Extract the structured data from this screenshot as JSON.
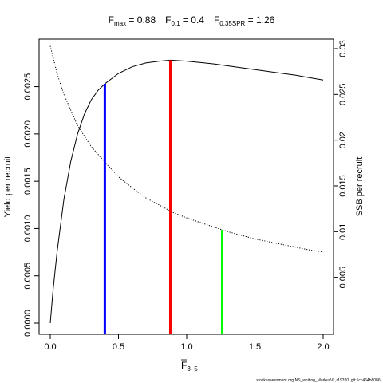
{
  "chart_data": {
    "type": "line",
    "title": {
      "fmax_label": "F",
      "fmax_sub": "max",
      "fmax_value": " = 0.88",
      "f01_label": "F",
      "f01_sub": "0.1",
      "f01_value": " = 0.4",
      "fspr_label": "F",
      "fspr_sub": "0.35SPR",
      "fspr_value": " = 1.26"
    },
    "xlabel_main": "F",
    "xlabel_sub": "3–5",
    "ylabel_left": "Yield per recruit",
    "ylabel_right": "SSB per recruit",
    "xlim": [
      0,
      2
    ],
    "ylim_left": [
      0,
      0.0028
    ],
    "ylim_right": [
      0,
      0.031
    ],
    "x_ticks": [
      {
        "value": 0.0,
        "label": "0.0"
      },
      {
        "value": 0.5,
        "label": "0.5"
      },
      {
        "value": 1.0,
        "label": "1.0"
      },
      {
        "value": 1.5,
        "label": "1.5"
      },
      {
        "value": 2.0,
        "label": "2.0"
      }
    ],
    "y_left_ticks": [
      {
        "value": 0.0,
        "label": "0.0000"
      },
      {
        "value": 0.0005,
        "label": "0.0005"
      },
      {
        "value": 0.001,
        "label": "0.0010"
      },
      {
        "value": 0.0015,
        "label": "0.0015"
      },
      {
        "value": 0.002,
        "label": "0.0020"
      },
      {
        "value": 0.0025,
        "label": "0.0025"
      }
    ],
    "y_right_ticks": [
      {
        "value": 0.005,
        "label": "0.005"
      },
      {
        "value": 0.01,
        "label": "0.01"
      },
      {
        "value": 0.015,
        "label": "0.015"
      },
      {
        "value": 0.02,
        "label": "0.02"
      },
      {
        "value": 0.025,
        "label": "0.025"
      },
      {
        "value": 0.03,
        "label": "0.03"
      }
    ],
    "series": [
      {
        "axis": "left",
        "style": "solid",
        "color": "#000000",
        "points": [
          [
            0.0,
            0.0
          ],
          [
            0.02,
            0.00034
          ],
          [
            0.05,
            0.00075
          ],
          [
            0.1,
            0.00131
          ],
          [
            0.15,
            0.00171
          ],
          [
            0.2,
            0.002
          ],
          [
            0.25,
            0.00221
          ],
          [
            0.3,
            0.00236
          ],
          [
            0.35,
            0.00246
          ],
          [
            0.4,
            0.00253
          ],
          [
            0.5,
            0.00264
          ],
          [
            0.6,
            0.00271
          ],
          [
            0.7,
            0.00275
          ],
          [
            0.8,
            0.00277
          ],
          [
            0.88,
            0.00278
          ],
          [
            1.0,
            0.00277
          ],
          [
            1.2,
            0.00274
          ],
          [
            1.4,
            0.0027
          ],
          [
            1.6,
            0.00266
          ],
          [
            1.8,
            0.00262
          ],
          [
            2.0,
            0.00257
          ]
        ]
      },
      {
        "axis": "right",
        "style": "dotted",
        "color": "#000000",
        "points": [
          [
            0.0,
            0.0303
          ],
          [
            0.05,
            0.0273
          ],
          [
            0.1,
            0.025
          ],
          [
            0.2,
            0.0216
          ],
          [
            0.3,
            0.0193
          ],
          [
            0.4,
            0.0176
          ],
          [
            0.5,
            0.016
          ],
          [
            0.6,
            0.0148
          ],
          [
            0.7,
            0.0137
          ],
          [
            0.8,
            0.0129
          ],
          [
            0.9,
            0.0121
          ],
          [
            1.0,
            0.0115
          ],
          [
            1.1,
            0.011
          ],
          [
            1.2,
            0.0105
          ],
          [
            1.3,
            0.01
          ],
          [
            1.4,
            0.0096
          ],
          [
            1.5,
            0.0092
          ],
          [
            1.6,
            0.0089
          ],
          [
            1.7,
            0.0086
          ],
          [
            1.8,
            0.0083
          ],
          [
            1.9,
            0.008
          ],
          [
            2.0,
            0.0078
          ]
        ]
      }
    ],
    "reference_lines": [
      {
        "name": "F0.1",
        "x": 0.4,
        "y_top": 0.00253,
        "axis": "left",
        "color": "#0000ff"
      },
      {
        "name": "Fmax",
        "x": 0.88,
        "y_top": 0.00278,
        "axis": "left",
        "color": "#ff0000"
      },
      {
        "name": "F0.35SPR",
        "x": 1.26,
        "y_top": 0.0102,
        "axis": "right",
        "color": "#00ff00"
      }
    ]
  },
  "watermark": "stockassessment.org,NS_whiting_MarkusVL,r19320, git:1cc464b8086f"
}
